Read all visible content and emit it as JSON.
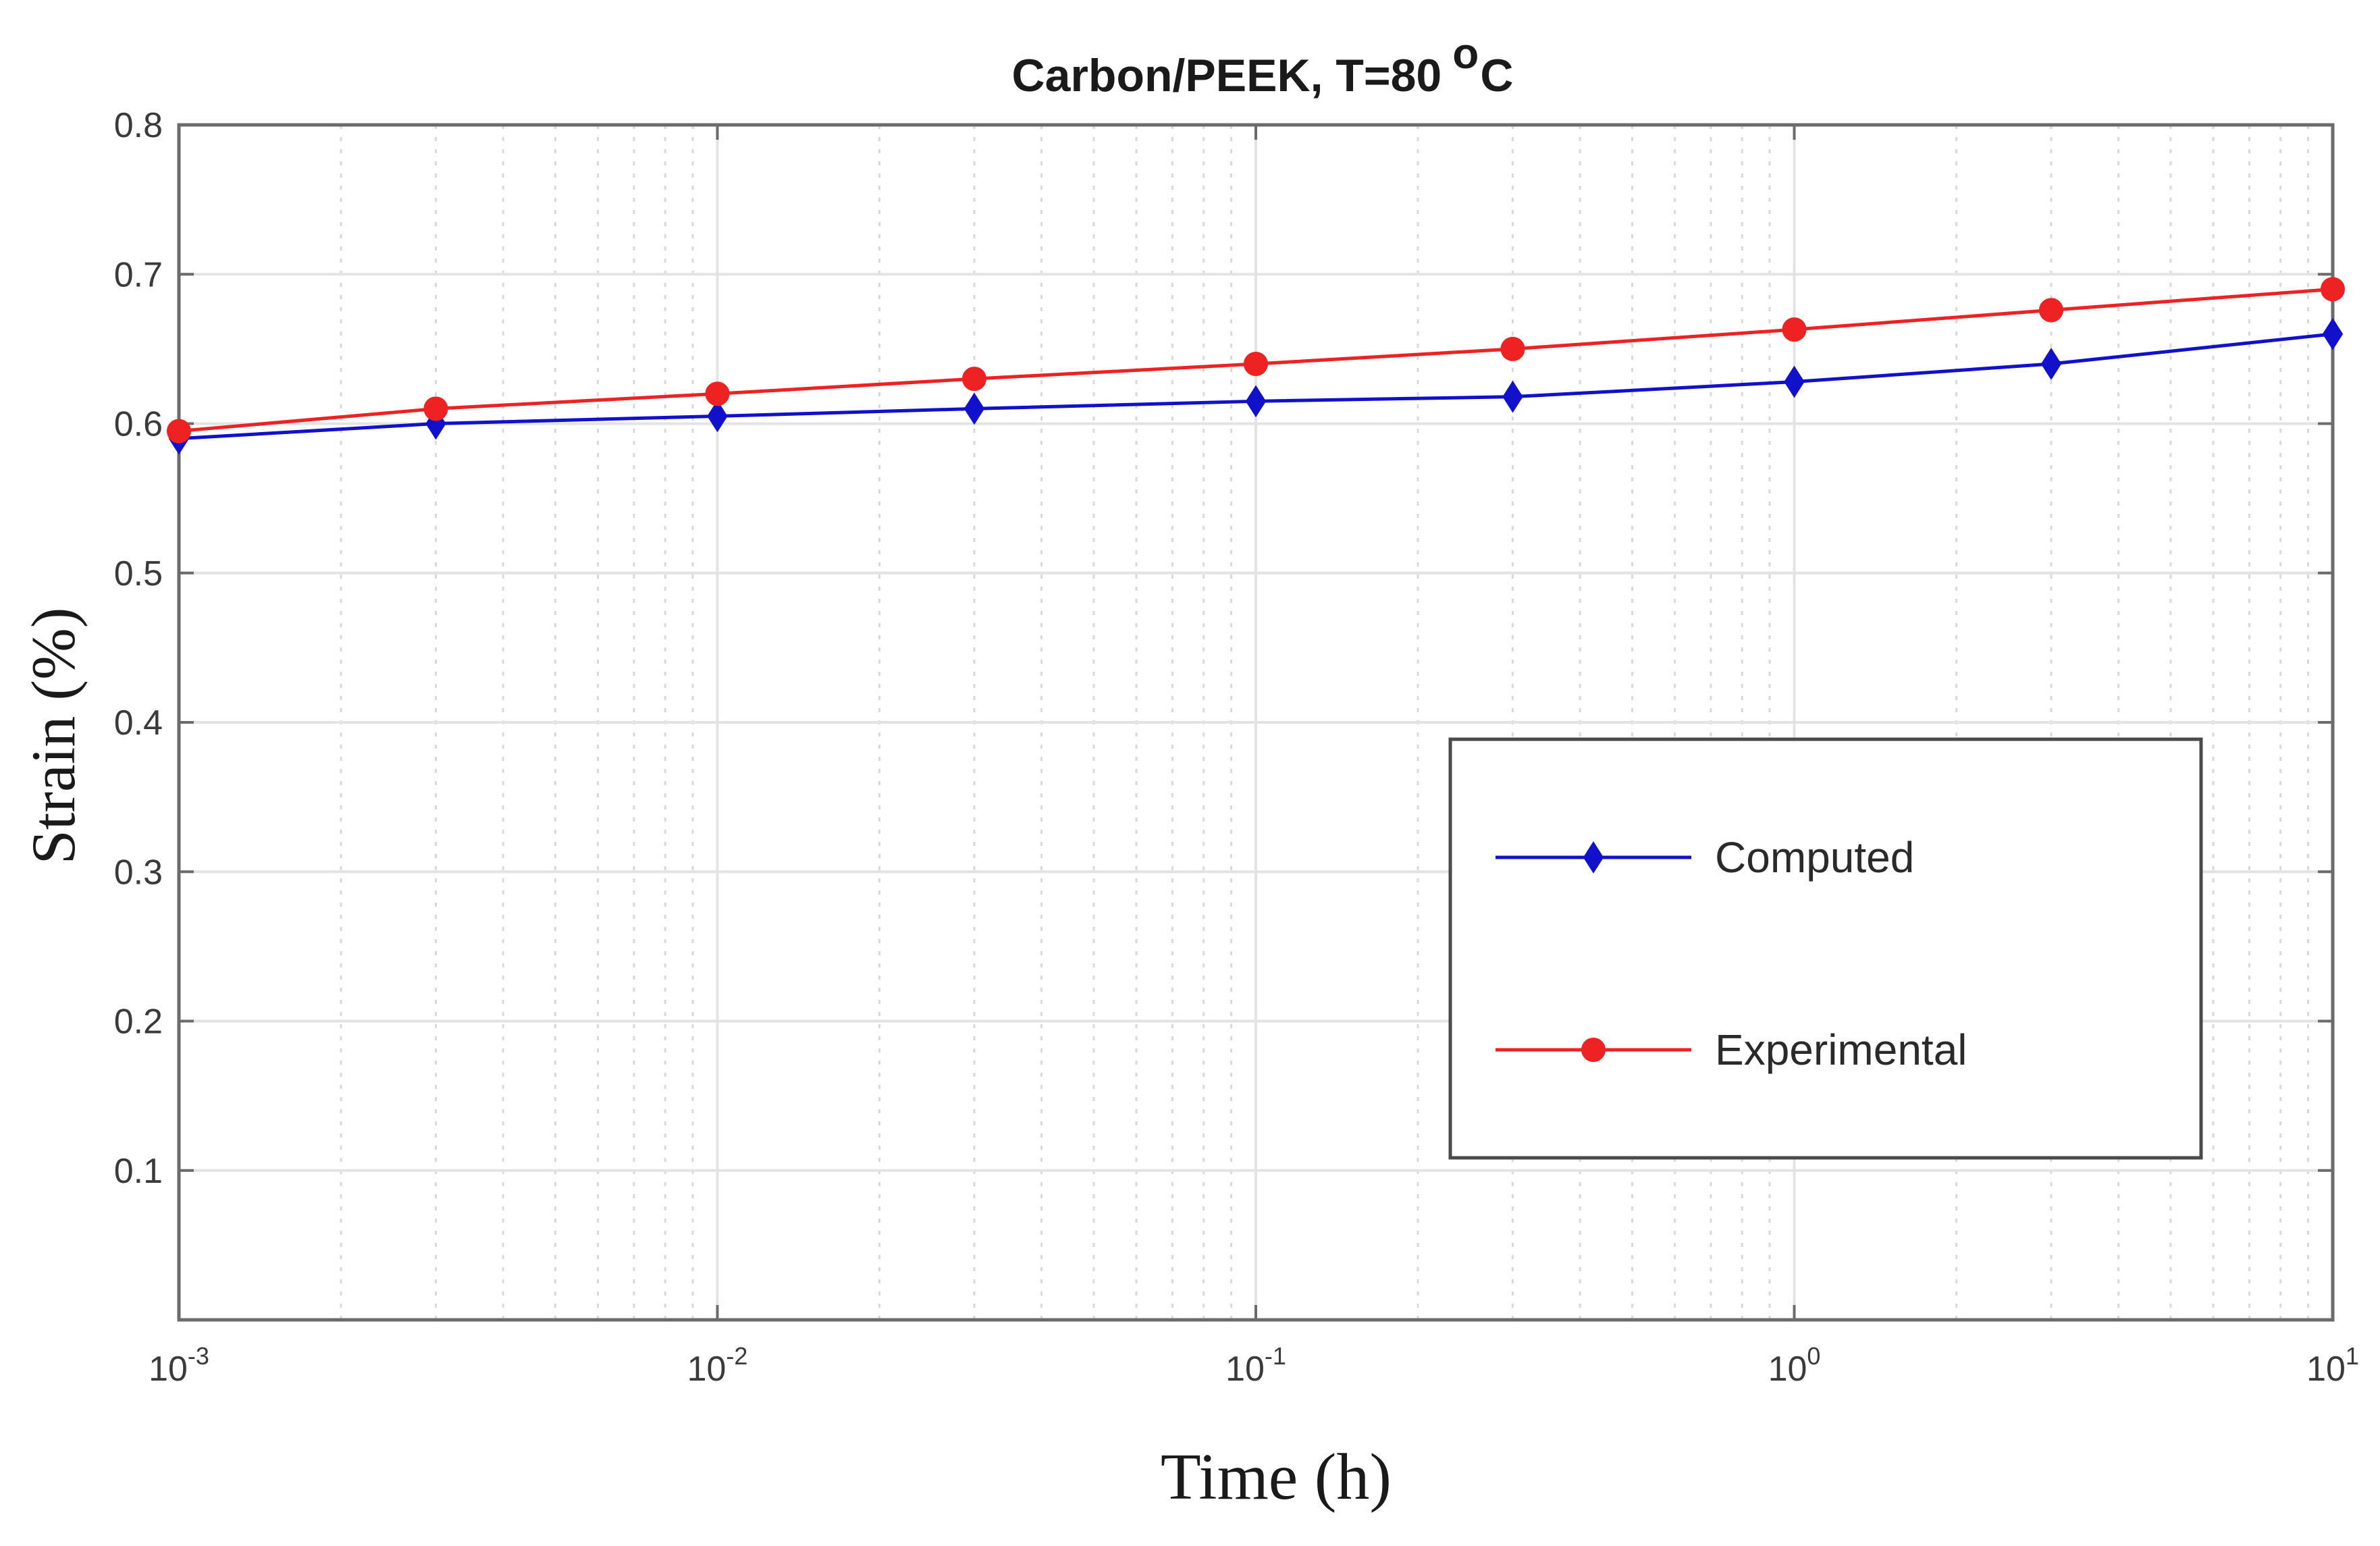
{
  "chart_data": {
    "type": "line",
    "title": "Carbon/PEEK, T=80",
    "title_unit_sup": "o",
    "title_unit": "C",
    "xlabel": "Time (h)",
    "ylabel": "Strain (%)",
    "xscale": "log",
    "xlim": [
      0.001,
      10
    ],
    "ylim": [
      0,
      0.8
    ],
    "grid": true,
    "legend_position": "lower-right",
    "x": [
      0.001,
      0.003,
      0.01,
      0.03,
      0.1,
      0.3,
      1,
      3,
      10
    ],
    "series": [
      {
        "name": "Computed",
        "color": "#1111cc",
        "marker": "diamond",
        "values": [
          0.59,
          0.6,
          0.605,
          0.61,
          0.615,
          0.618,
          0.628,
          0.64,
          0.66
        ]
      },
      {
        "name": "Experimental",
        "color": "#ee2222",
        "marker": "circle",
        "values": [
          0.595,
          0.61,
          0.62,
          0.63,
          0.64,
          0.65,
          0.663,
          0.676,
          0.69
        ]
      }
    ],
    "y_ticks": [
      {
        "value": 0.1,
        "label": "0.1"
      },
      {
        "value": 0.2,
        "label": "0.2"
      },
      {
        "value": 0.3,
        "label": "0.3"
      },
      {
        "value": 0.4,
        "label": "0.4"
      },
      {
        "value": 0.5,
        "label": "0.5"
      },
      {
        "value": 0.6,
        "label": "0.6"
      },
      {
        "value": 0.7,
        "label": "0.7"
      },
      {
        "value": 0.8,
        "label": "0.8"
      }
    ],
    "x_ticks": [
      {
        "value": 0.001,
        "base": "10",
        "exp": "-3"
      },
      {
        "value": 0.01,
        "base": "10",
        "exp": "-2"
      },
      {
        "value": 0.1,
        "base": "10",
        "exp": "-1"
      },
      {
        "value": 1,
        "base": "10",
        "exp": "0"
      },
      {
        "value": 10,
        "base": "10",
        "exp": "1"
      }
    ]
  }
}
